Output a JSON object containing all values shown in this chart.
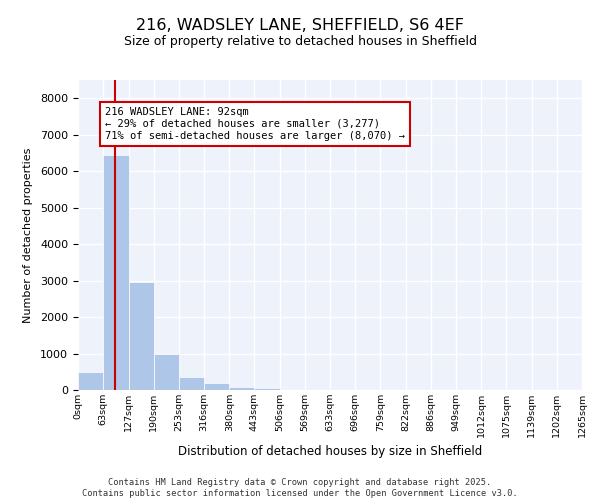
{
  "title": "216, WADSLEY LANE, SHEFFIELD, S6 4EF",
  "subtitle": "Size of property relative to detached houses in Sheffield",
  "xlabel": "Distribution of detached houses by size in Sheffield",
  "ylabel": "Number of detached properties",
  "property_size": 92,
  "annotation_text": "216 WADSLEY LANE: 92sqm\n← 29% of detached houses are smaller (3,277)\n71% of semi-detached houses are larger (8,070) →",
  "bar_color": "#aec6e8",
  "vline_color": "#cc0000",
  "annotation_box_color": "#cc0000",
  "footer_text": "Contains HM Land Registry data © Crown copyright and database right 2025.\nContains public sector information licensed under the Open Government Licence v3.0.",
  "ylim": [
    0,
    8500
  ],
  "yticks": [
    0,
    1000,
    2000,
    3000,
    4000,
    5000,
    6000,
    7000,
    8000
  ],
  "bin_edges": [
    0,
    63,
    127,
    190,
    253,
    316,
    380,
    443,
    506,
    569,
    633,
    696,
    759,
    822,
    886,
    949,
    1012,
    1075,
    1139,
    1202,
    1265
  ],
  "bin_labels": [
    "0sqm",
    "63sqm",
    "127sqm",
    "190sqm",
    "253sqm",
    "316sqm",
    "380sqm",
    "443sqm",
    "506sqm",
    "569sqm",
    "633sqm",
    "696sqm",
    "759sqm",
    "822sqm",
    "886sqm",
    "949sqm",
    "1012sqm",
    "1075sqm",
    "1139sqm",
    "1202sqm",
    "1265sqm"
  ],
  "bar_heights": [
    480,
    6450,
    2950,
    1000,
    370,
    180,
    90,
    50,
    30,
    20,
    15,
    10,
    8,
    6,
    4,
    3,
    2,
    2,
    1,
    1
  ],
  "background_color": "#eef2fb",
  "grid_color": "#ffffff"
}
